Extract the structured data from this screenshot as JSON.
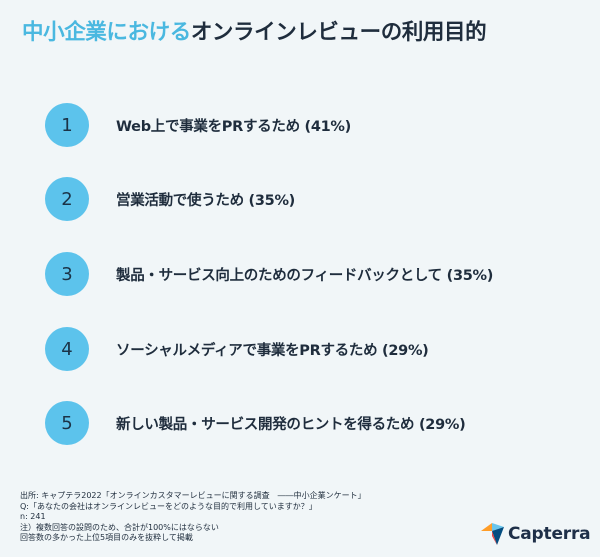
{
  "title": {
    "accent": "中小企業における",
    "main": "オンラインレビューの利用目的"
  },
  "items": [
    {
      "number": "1",
      "label": "Web上で事業をPRするため (41%)"
    },
    {
      "number": "2",
      "label": "営業活動で使うため (35%)"
    },
    {
      "number": "3",
      "label": "製品・サービス向上のためのフィードバックとして (35%)"
    },
    {
      "number": "4",
      "label": "ソーシャルメディアで事業をPRするため (29%)"
    },
    {
      "number": "5",
      "label": "新しい製品・サービス開発のヒントを得るため (29%)"
    }
  ],
  "footer": {
    "source": "出所: キャプテラ2022「オンラインカスタマーレビューに関する調査　――中小企業ンケート」",
    "question": "Q:「あなたの会社はオンラインレビューをどのような目的で利用していますか？」",
    "n": "n: 241",
    "note1": "注）複数回答の設問のため、合計が100%にはならない",
    "note2": "回答数の多かった上位5項目のみを抜粋して掲載"
  },
  "logo": {
    "text": "Capterra",
    "icon": "capterra-logo-icon",
    "colors": {
      "blue": "#ff9d28",
      "orange": "#ff9d28",
      "navy": "#044d80",
      "light": "#68c5ed"
    }
  },
  "colors": {
    "background": "#f1f6f8",
    "accent": "#4ab8e0",
    "circle": "#5cc3ec",
    "text": "#1f2d3d"
  }
}
